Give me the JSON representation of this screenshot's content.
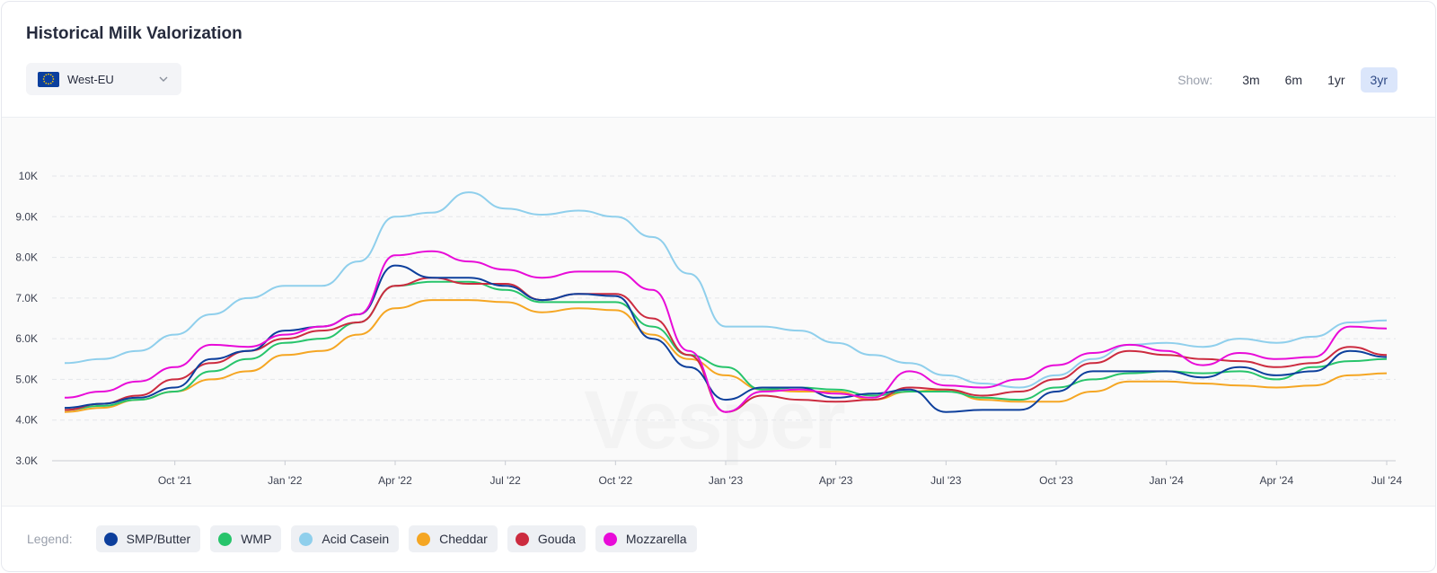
{
  "title": "Historical Milk Valorization",
  "region": {
    "label": "West-EU",
    "flag_icon": "eu-flag-icon"
  },
  "range": {
    "label": "Show:",
    "options": [
      "3m",
      "6m",
      "1yr",
      "3yr"
    ],
    "selected": "3yr"
  },
  "watermark": "Vesper",
  "legend": {
    "label": "Legend:"
  },
  "chart_data": {
    "type": "line",
    "x": [
      "2021-07",
      "2021-08",
      "2021-09",
      "2021-10",
      "2021-11",
      "2021-12",
      "2022-01",
      "2022-02",
      "2022-03",
      "2022-04",
      "2022-05",
      "2022-06",
      "2022-07",
      "2022-08",
      "2022-09",
      "2022-10",
      "2022-11",
      "2022-12",
      "2023-01",
      "2023-02",
      "2023-03",
      "2023-04",
      "2023-05",
      "2023-06",
      "2023-07",
      "2023-08",
      "2023-09",
      "2023-10",
      "2023-11",
      "2023-12",
      "2024-01",
      "2024-02",
      "2024-03",
      "2024-04",
      "2024-05",
      "2024-06",
      "2024-07"
    ],
    "x_ticks": [
      "Oct '21",
      "Jan '22",
      "Apr '22",
      "Jul '22",
      "Oct '22",
      "Jan '23",
      "Apr '23",
      "Jul '23",
      "Oct '23",
      "Jan '24",
      "Apr '24",
      "Jul '24"
    ],
    "x_tick_positions": [
      "2021-10",
      "2022-01",
      "2022-04",
      "2022-07",
      "2022-10",
      "2023-01",
      "2023-04",
      "2023-07",
      "2023-10",
      "2024-01",
      "2024-04",
      "2024-07"
    ],
    "y_ticks": [
      "3.0K",
      "4.0K",
      "5.0K",
      "6.0K",
      "7.0K",
      "8.0K",
      "9.0K",
      "10K"
    ],
    "ylim": [
      3000,
      10000
    ],
    "grid": true,
    "legend_position": "bottom",
    "series": [
      {
        "name": "SMP/Butter",
        "color": "#0d3f9c",
        "values": [
          4300,
          4400,
          4550,
          4800,
          5500,
          5700,
          6200,
          6300,
          6600,
          7800,
          7500,
          7500,
          7300,
          6950,
          7100,
          7050,
          6000,
          5300,
          4500,
          4800,
          4800,
          4550,
          4650,
          4750,
          4200,
          4250,
          4250,
          4700,
          5200,
          5200,
          5200,
          5050,
          5300,
          5100,
          5200,
          5700,
          5550
        ]
      },
      {
        "name": "WMP",
        "color": "#27c46b",
        "values": [
          4250,
          4350,
          4500,
          4700,
          5200,
          5500,
          5900,
          6000,
          6400,
          7300,
          7400,
          7400,
          7200,
          6900,
          6900,
          6900,
          6300,
          5600,
          5300,
          4750,
          4800,
          4750,
          4600,
          4700,
          4700,
          4550,
          4500,
          4800,
          5000,
          5150,
          5200,
          5150,
          5200,
          5000,
          5300,
          5450,
          5500
        ]
      },
      {
        "name": "Acid Casein",
        "color": "#8fcfec",
        "values": [
          5400,
          5500,
          5700,
          6100,
          6600,
          7000,
          7300,
          7300,
          7900,
          9000,
          9100,
          9600,
          9200,
          9050,
          9150,
          9000,
          8500,
          7600,
          6300,
          6300,
          6200,
          5900,
          5600,
          5400,
          5100,
          4900,
          4800,
          5100,
          5500,
          5850,
          5900,
          5800,
          6000,
          5900,
          6050,
          6400,
          6450
        ]
      },
      {
        "name": "Cheddar",
        "color": "#f5a623",
        "values": [
          4200,
          4300,
          4500,
          4700,
          5000,
          5200,
          5600,
          5700,
          6100,
          6750,
          6950,
          6950,
          6900,
          6650,
          6750,
          6700,
          6100,
          5500,
          5100,
          4750,
          4700,
          4700,
          4500,
          4700,
          4750,
          4500,
          4450,
          4450,
          4700,
          4950,
          4950,
          4900,
          4850,
          4800,
          4850,
          5100,
          5150
        ]
      },
      {
        "name": "Gouda",
        "color": "#cc2b3f",
        "values": [
          4250,
          4400,
          4600,
          5000,
          5400,
          5700,
          6000,
          6200,
          6400,
          7300,
          7500,
          7350,
          7350,
          6950,
          7100,
          7100,
          6500,
          5600,
          4200,
          4600,
          4500,
          4450,
          4500,
          4800,
          4750,
          4600,
          4700,
          5000,
          5400,
          5700,
          5600,
          5500,
          5450,
          5300,
          5400,
          5800,
          5600
        ]
      },
      {
        "name": "Mozzarella",
        "color": "#e80bd8",
        "values": [
          4550,
          4700,
          4950,
          5300,
          5850,
          5800,
          6100,
          6300,
          6600,
          8050,
          8150,
          7900,
          7700,
          7500,
          7650,
          7650,
          7200,
          5700,
          4200,
          4700,
          4750,
          4650,
          4550,
          5200,
          4850,
          4800,
          5000,
          5350,
          5650,
          5850,
          5700,
          5350,
          5650,
          5500,
          5550,
          6300,
          6250
        ]
      }
    ]
  }
}
